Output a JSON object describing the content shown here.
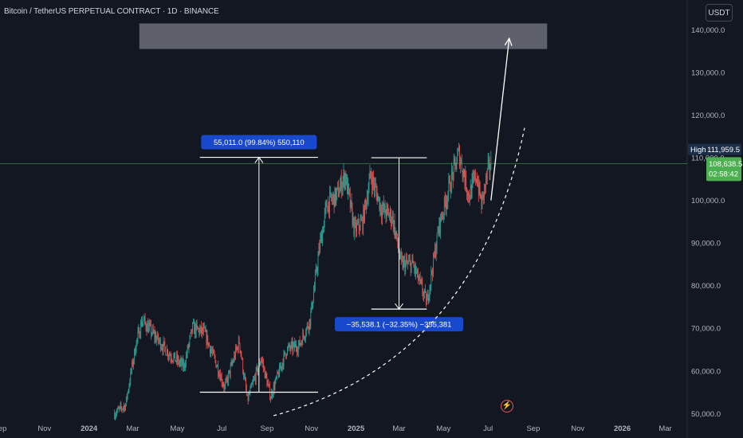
{
  "header": {
    "title": "Bitcoin / TetherUS PERPETUAL CONTRACT · 1D · BINANCE",
    "currency": "USDT"
  },
  "colors": {
    "background": "#131722",
    "up_candle": "#26a69a",
    "down_candle": "#ef5350",
    "price_line": "#4caf50",
    "high_label_bg": "#1c2e4a",
    "measure_label_bg": "#1848cc",
    "text": "#d1d4dc",
    "axis_text": "#b2b5be"
  },
  "icons": {
    "replay": "flash-icon"
  },
  "chart_data": {
    "type": "candlestick",
    "x_range": [
      "2023-09-01",
      "2026-03-31"
    ],
    "y_range": [
      48000,
      147000
    ],
    "y_scale": "linear",
    "grid": false,
    "x_ticks": [
      {
        "label": "Sep",
        "date": "2023-09-01"
      },
      {
        "label": "Nov",
        "date": "2023-11-01"
      },
      {
        "label": "2024",
        "date": "2024-01-01",
        "bold": true
      },
      {
        "label": "Mar",
        "date": "2024-03-01"
      },
      {
        "label": "May",
        "date": "2024-05-01"
      },
      {
        "label": "Jul",
        "date": "2024-07-01"
      },
      {
        "label": "Sep",
        "date": "2024-09-01"
      },
      {
        "label": "Nov",
        "date": "2024-11-01"
      },
      {
        "label": "2025",
        "date": "2025-01-01",
        "bold": true
      },
      {
        "label": "Mar",
        "date": "2025-03-01"
      },
      {
        "label": "May",
        "date": "2025-05-01"
      },
      {
        "label": "Jul",
        "date": "2025-07-01"
      },
      {
        "label": "Sep",
        "date": "2025-09-01"
      },
      {
        "label": "Nov",
        "date": "2025-11-01"
      },
      {
        "label": "2026",
        "date": "2026-01-01",
        "bold": true
      },
      {
        "label": "Mar",
        "date": "2026-03-01"
      }
    ],
    "y_ticks": [
      {
        "label": "50,000.0",
        "value": 50000
      },
      {
        "label": "60,000.0",
        "value": 60000
      },
      {
        "label": "70,000.0",
        "value": 70000
      },
      {
        "label": "80,000.0",
        "value": 80000
      },
      {
        "label": "90,000.0",
        "value": 90000
      },
      {
        "label": "100,000.0",
        "value": 100000
      },
      {
        "label": "110,000.0",
        "value": 110000
      },
      {
        "label": "120,000.0",
        "value": 120000
      },
      {
        "label": "130,000.0",
        "value": 130000
      },
      {
        "label": "140,000.0",
        "value": 140000
      }
    ],
    "price_path": [
      [
        "2024-02-05",
        50000
      ],
      [
        "2024-02-20",
        52000
      ],
      [
        "2024-03-05",
        66000
      ],
      [
        "2024-03-14",
        72000
      ],
      [
        "2024-04-01",
        68000
      ],
      [
        "2024-04-20",
        64000
      ],
      [
        "2024-05-10",
        61000
      ],
      [
        "2024-05-22",
        70000
      ],
      [
        "2024-06-07",
        69000
      ],
      [
        "2024-06-25",
        61000
      ],
      [
        "2024-07-05",
        56000
      ],
      [
        "2024-07-25",
        67000
      ],
      [
        "2024-08-05",
        53000
      ],
      [
        "2024-08-24",
        63000
      ],
      [
        "2024-09-06",
        54000
      ],
      [
        "2024-09-28",
        65000
      ],
      [
        "2024-10-15",
        66000
      ],
      [
        "2024-10-30",
        72000
      ],
      [
        "2024-11-12",
        89000
      ],
      [
        "2024-11-22",
        99000
      ],
      [
        "2024-12-05",
        101000
      ],
      [
        "2024-12-17",
        106000
      ],
      [
        "2024-12-30",
        93000
      ],
      [
        "2025-01-10",
        95000
      ],
      [
        "2025-01-21",
        106000
      ],
      [
        "2025-02-05",
        98000
      ],
      [
        "2025-02-20",
        96000
      ],
      [
        "2025-03-04",
        85000
      ],
      [
        "2025-03-20",
        85000
      ],
      [
        "2025-04-08",
        76000
      ],
      [
        "2025-04-25",
        94000
      ],
      [
        "2025-05-10",
        104000
      ],
      [
        "2025-05-22",
        111000
      ],
      [
        "2025-06-05",
        101000
      ],
      [
        "2025-06-15",
        106000
      ],
      [
        "2025-06-22",
        99000
      ],
      [
        "2025-07-01",
        107000
      ],
      [
        "2025-07-05",
        108638.5
      ]
    ],
    "high": {
      "label": "High",
      "value_label": "111,959.5",
      "value": 111959.5
    },
    "last_price": {
      "label": "108,638.5",
      "value": 108638.5,
      "countdown": "02:58:42"
    },
    "target_zone": {
      "date_from": "2024-03-10",
      "date_to": "2025-09-20",
      "price_from": 135500,
      "price_to": 141500
    },
    "arrow": {
      "from": [
        "2025-07-05",
        100000
      ],
      "to": [
        "2025-07-30",
        138000
      ]
    },
    "curve": {
      "from": [
        "2024-09-10",
        49500
      ],
      "to": [
        "2025-08-20",
        117000
      ]
    },
    "measurements": [
      {
        "label": "55,011.0 (99.84%) 550,110",
        "date_from": "2024-06-01",
        "date_to": "2024-11-10",
        "price_from": 55000,
        "price_to": 110100,
        "direction": "up"
      },
      {
        "label": "−35,538.1 (−32.35%) −355,381",
        "date_from": "2025-01-22",
        "date_to": "2025-04-08",
        "price_from": 110000,
        "price_to": 74500,
        "direction": "down"
      }
    ]
  }
}
